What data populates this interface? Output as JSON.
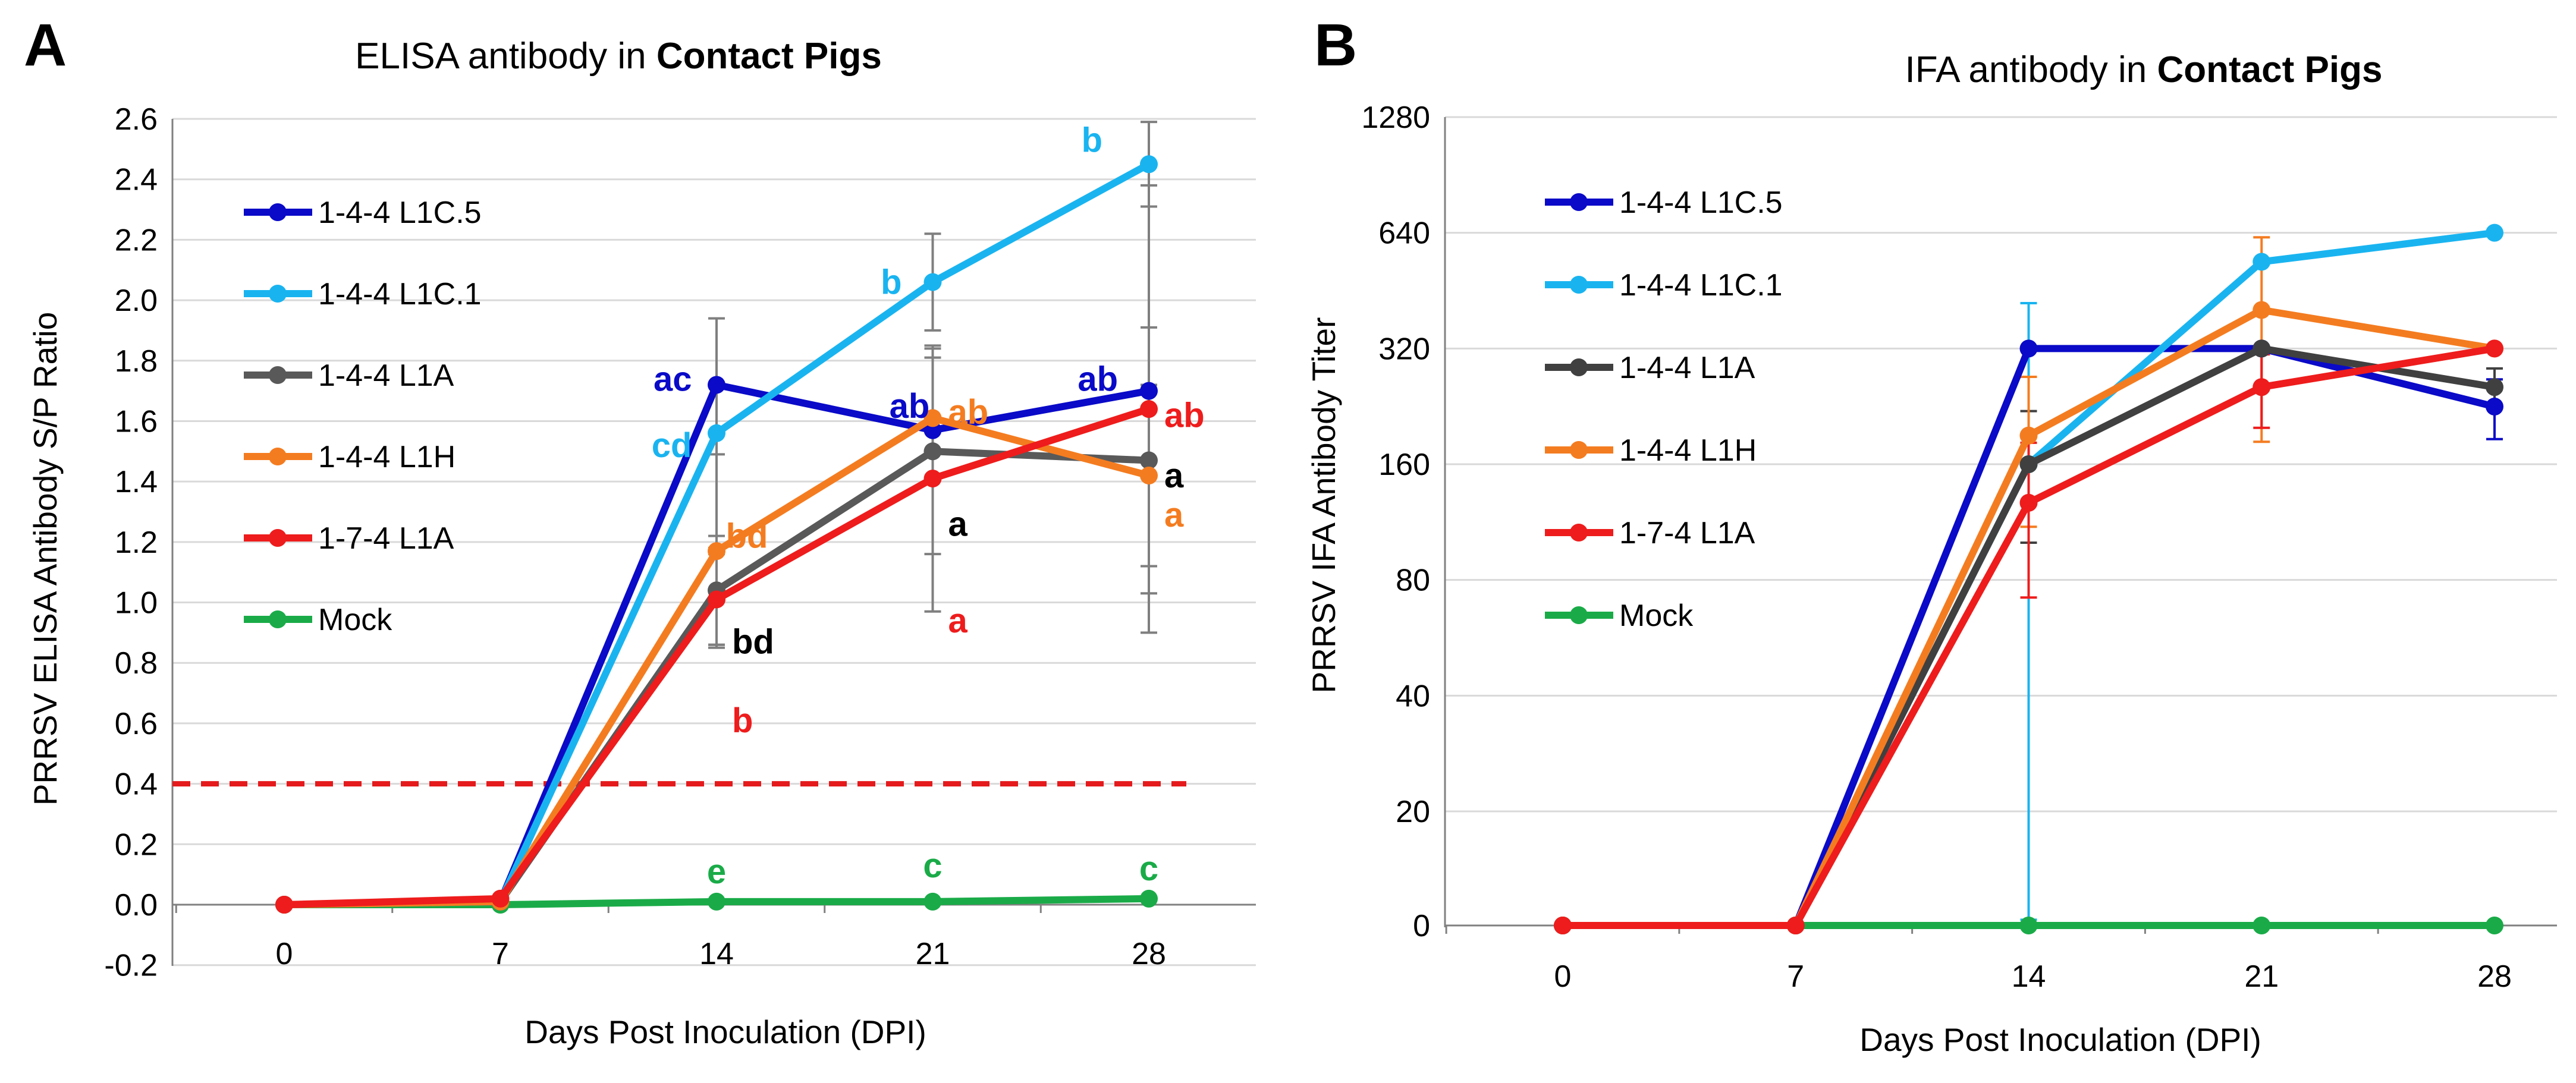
{
  "figure": {
    "panels": [
      "A",
      "B"
    ]
  },
  "chart_data": [
    {
      "type": "line",
      "panel": "A",
      "title": "ELISA antibody in",
      "title_bold": "Contact Pigs",
      "xlabel": "Days Post Inoculation (DPI)",
      "ylabel": "PRRSV ELISA Antibody S/P Ratio",
      "x": [
        0,
        7,
        14,
        21,
        28
      ],
      "x_tick_labels": [
        "0",
        "7",
        "14",
        "21",
        "28"
      ],
      "ylim": [
        -0.2,
        2.6
      ],
      "y_ticks": [
        -0.2,
        0.0,
        0.2,
        0.4,
        0.6,
        0.8,
        1.0,
        1.2,
        1.4,
        1.6,
        1.8,
        2.0,
        2.2,
        2.4,
        2.6
      ],
      "y_tick_labels": [
        "-0.2",
        "0.0",
        "0.2",
        "0.4",
        "0.6",
        "0.8",
        "1.0",
        "1.2",
        "1.4",
        "1.6",
        "1.8",
        "2.0",
        "2.2",
        "2.4",
        "2.6"
      ],
      "cutoff": {
        "value": 0.4,
        "color": "#e41a1c",
        "style": "dashed"
      },
      "legend_position": "top-left",
      "series": [
        {
          "name": "1-4-4 L1C.5",
          "color": "#0a0ac8",
          "values": [
            0.0,
            0.01,
            1.72,
            1.57,
            1.7
          ],
          "err": [
            0,
            0,
            0,
            0,
            0
          ]
        },
        {
          "name": "1-4-4 L1C.1",
          "color": "#19b4f0",
          "values": [
            0.0,
            0.01,
            1.56,
            2.06,
            2.45
          ],
          "err": [
            0,
            0,
            0.38,
            0.16,
            0.14
          ]
        },
        {
          "name": "1-4-4 L1A",
          "color": "#595959",
          "values": [
            0.0,
            0.01,
            1.04,
            1.5,
            1.47
          ],
          "err": [
            0,
            0,
            0.18,
            0.34,
            0.44
          ]
        },
        {
          "name": "1-4-4 L1H",
          "color": "#f47c20",
          "values": [
            0.0,
            0.01,
            1.17,
            1.61,
            1.42
          ],
          "err": [
            0,
            0,
            0.32,
            0.2,
            0.3
          ]
        },
        {
          "name": "1-7-4 L1A",
          "color": "#ee1c1c",
          "values": [
            0.0,
            0.02,
            1.01,
            1.41,
            1.64
          ],
          "err": [
            0,
            0,
            0.15,
            0.44,
            0.74
          ]
        },
        {
          "name": "Mock",
          "color": "#1aab48",
          "values": [
            0.0,
            0.0,
            0.01,
            0.01,
            0.02
          ],
          "err": [
            0,
            0,
            0,
            0,
            0
          ]
        }
      ],
      "annotations": [
        {
          "text": "ac",
          "color": "#0a0ac8",
          "x": 14,
          "y": 1.72,
          "anchor": "end",
          "dx": -0.8,
          "dy": 0.02
        },
        {
          "text": "cd",
          "color": "#19b4f0",
          "x": 14,
          "y": 1.56,
          "anchor": "end",
          "dx": -0.8,
          "dy": -0.04
        },
        {
          "text": "bd",
          "color": "#f47c20",
          "x": 14,
          "y": 1.17,
          "anchor": "start",
          "dx": 0.3,
          "dy": 0.05
        },
        {
          "text": "bd",
          "color": "#000000",
          "x": 14,
          "y": 1.04,
          "anchor": "start",
          "dx": 0.5,
          "dy": -0.17
        },
        {
          "text": "b",
          "color": "#ee1c1c",
          "x": 14,
          "y": 1.01,
          "anchor": "start",
          "dx": 0.5,
          "dy": -0.4
        },
        {
          "text": "e",
          "color": "#1aab48",
          "x": 14,
          "y": 0.01,
          "anchor": "middle",
          "dx": 0,
          "dy": 0.1
        },
        {
          "text": "b",
          "color": "#19b4f0",
          "x": 21,
          "y": 2.06,
          "anchor": "end",
          "dx": -1.0,
          "dy": 0.0
        },
        {
          "text": "ab",
          "color": "#0a0ac8",
          "x": 21,
          "y": 1.57,
          "anchor": "end",
          "dx": -0.1,
          "dy": 0.08
        },
        {
          "text": "ab",
          "color": "#f47c20",
          "x": 21,
          "y": 1.61,
          "anchor": "start",
          "dx": 0.5,
          "dy": 0.02
        },
        {
          "text": "a",
          "color": "#000000",
          "x": 21,
          "y": 1.5,
          "anchor": "start",
          "dx": 0.5,
          "dy": -0.24
        },
        {
          "text": "a",
          "color": "#ee1c1c",
          "x": 21,
          "y": 1.41,
          "anchor": "start",
          "dx": 0.5,
          "dy": -0.47
        },
        {
          "text": "c",
          "color": "#1aab48",
          "x": 21,
          "y": 0.01,
          "anchor": "middle",
          "dx": 0,
          "dy": 0.12
        },
        {
          "text": "b",
          "color": "#19b4f0",
          "x": 28,
          "y": 2.45,
          "anchor": "end",
          "dx": -1.5,
          "dy": 0.08
        },
        {
          "text": "ab",
          "color": "#0a0ac8",
          "x": 28,
          "y": 1.7,
          "anchor": "end",
          "dx": -1.0,
          "dy": 0.04
        },
        {
          "text": "ab",
          "color": "#ee1c1c",
          "x": 28,
          "y": 1.64,
          "anchor": "start",
          "dx": 0.5,
          "dy": -0.02
        },
        {
          "text": "a",
          "color": "#000000",
          "x": 28,
          "y": 1.47,
          "anchor": "start",
          "dx": 0.5,
          "dy": -0.05
        },
        {
          "text": "a",
          "color": "#f47c20",
          "x": 28,
          "y": 1.42,
          "anchor": "start",
          "dx": 0.5,
          "dy": -0.13
        },
        {
          "text": "c",
          "color": "#1aab48",
          "x": 28,
          "y": 0.02,
          "anchor": "middle",
          "dx": 0,
          "dy": 0.1
        }
      ]
    },
    {
      "type": "line",
      "panel": "B",
      "title": "IFA antibody in",
      "title_bold": "Contact Pigs",
      "xlabel": "Days Post Inoculation (DPI)",
      "ylabel": "PRRSV IFA Antibody Titer",
      "x": [
        0,
        7,
        14,
        21,
        28
      ],
      "x_tick_labels": [
        "0",
        "7",
        "14",
        "21",
        "28"
      ],
      "y_scale": "log2 (0 plotted at baseline)",
      "y_ticks": [
        0,
        20,
        40,
        80,
        160,
        320,
        640,
        1280
      ],
      "y_tick_labels": [
        "0",
        "20",
        "40",
        "80",
        "160",
        "320",
        "640",
        "1280"
      ],
      "legend_position": "top-left",
      "series": [
        {
          "name": "1-4-4 L1C.5",
          "color": "#0a0ac8",
          "values": [
            0,
            0,
            320,
            320,
            226
          ],
          "err": [
            0,
            0,
            0,
            0,
            40
          ]
        },
        {
          "name": "1-4-4 L1C.1",
          "color": "#19b4f0",
          "values": [
            0,
            0,
            160,
            538,
            640
          ],
          "err": [
            0,
            0,
            260,
            0,
            0
          ]
        },
        {
          "name": "1-4-4 L1A",
          "color": "#404040",
          "values": [
            0,
            0,
            160,
            320,
            254
          ],
          "err": [
            0,
            0,
            60,
            0,
            30
          ]
        },
        {
          "name": "1-4-4 L1H",
          "color": "#f47c20",
          "values": [
            0,
            0,
            190,
            403,
            320
          ],
          "err": [
            0,
            0,
            80,
            220,
            0
          ]
        },
        {
          "name": "1-7-4 L1A",
          "color": "#ee1c1c",
          "values": [
            0,
            0,
            127,
            254,
            320
          ],
          "err": [
            0,
            0,
            55,
            55,
            0
          ]
        },
        {
          "name": "Mock",
          "color": "#1aab48",
          "values": [
            0,
            0,
            0,
            0,
            0
          ],
          "err": [
            0,
            0,
            0,
            0,
            0
          ]
        }
      ]
    }
  ]
}
